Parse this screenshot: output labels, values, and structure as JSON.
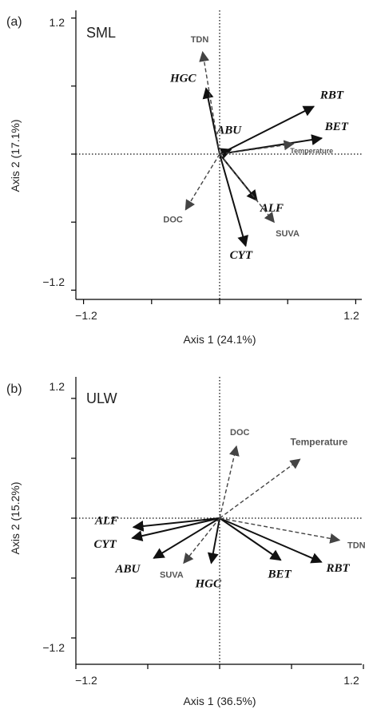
{
  "chart_data": [
    {
      "type": "scatter",
      "panel_label": "(a)",
      "title": "SML",
      "xlabel": "Axis 1 (24.1%)",
      "ylabel": "Axis 2 (17.1%)",
      "xlim": [
        -1.2,
        1.2
      ],
      "ylim": [
        -1.2,
        1.2
      ],
      "x_tick_labels": [
        "−1.2",
        "1.2"
      ],
      "y_tick_labels": [
        "1.2",
        "−1.2"
      ],
      "series": [
        {
          "name": "",
          "style": "solid",
          "vectors": [
            {
              "label": "RBT",
              "x": 0.83,
              "y": 0.42
            },
            {
              "label": "BET",
              "x": 0.9,
              "y": 0.14
            },
            {
              "label": "ABU",
              "x": 0.1,
              "y": 0.04
            },
            {
              "label": "HGC",
              "x": -0.12,
              "y": 0.58
            },
            {
              "label": "ALF",
              "x": 0.33,
              "y": -0.41
            },
            {
              "label": "CYT",
              "x": 0.23,
              "y": -0.81
            }
          ]
        },
        {
          "name": "",
          "style": "dashed",
          "vectors": [
            {
              "label": "TDN",
              "x": -0.15,
              "y": 0.9
            },
            {
              "label": "Temperature",
              "x": 0.65,
              "y": 0.09
            },
            {
              "label": "DOC",
              "x": -0.3,
              "y": -0.49
            },
            {
              "label": "SUVA",
              "x": 0.48,
              "y": -0.6
            }
          ]
        }
      ]
    },
    {
      "type": "scatter",
      "panel_label": "(b)",
      "title": "ULW",
      "xlabel": "Axis 1 (36.5%)",
      "ylabel": "Axis 2 (15.2%)",
      "xlim": [
        -1.2,
        1.2
      ],
      "ylim": [
        -1.2,
        1.2
      ],
      "x_tick_labels": [
        "−1.2",
        "1.2"
      ],
      "y_tick_labels": [
        "1.2",
        "−1.2"
      ],
      "series": [
        {
          "name": "",
          "style": "solid",
          "vectors": [
            {
              "label": "ALF",
              "x": -0.72,
              "y": -0.09
            },
            {
              "label": "CYT",
              "x": -0.73,
              "y": -0.2
            },
            {
              "label": "ABU",
              "x": -0.55,
              "y": -0.4
            },
            {
              "label": "HGC",
              "x": -0.07,
              "y": -0.45
            },
            {
              "label": "BET",
              "x": 0.51,
              "y": -0.42
            },
            {
              "label": "RBT",
              "x": 0.85,
              "y": -0.44
            }
          ]
        },
        {
          "name": "",
          "style": "dashed",
          "vectors": [
            {
              "label": "DOC",
              "x": 0.14,
              "y": 0.72
            },
            {
              "label": "Temperature",
              "x": 0.67,
              "y": 0.59
            },
            {
              "label": "TDN",
              "x": 1.0,
              "y": -0.22
            },
            {
              "label": "SUVA",
              "x": -0.3,
              "y": -0.45
            }
          ]
        }
      ]
    }
  ]
}
